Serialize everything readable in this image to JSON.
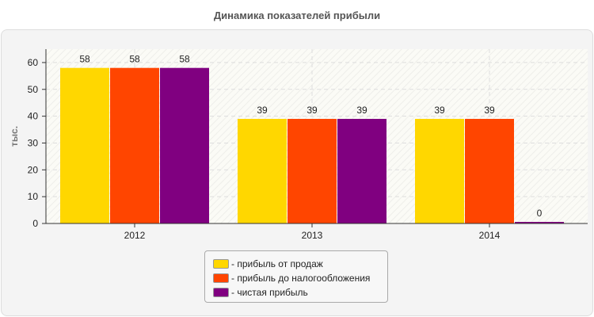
{
  "chart_data": {
    "type": "bar",
    "title": "Динамика показателей прибыли",
    "ylabel": "тыс.",
    "categories": [
      "2012",
      "2013",
      "2014"
    ],
    "ylim": [
      0,
      65
    ],
    "yticks": [
      0,
      10,
      20,
      30,
      40,
      50,
      60
    ],
    "grid": true,
    "legend_position": "bottom",
    "series": [
      {
        "name": "- прибыль от продаж",
        "color": "#FFD700",
        "values": [
          58,
          39,
          39
        ]
      },
      {
        "name": "- прибыль до налогообложения",
        "color": "#FF4500",
        "values": [
          58,
          39,
          39
        ]
      },
      {
        "name": "- чистая прибыль",
        "color": "#800080",
        "values": [
          58,
          39,
          0
        ]
      }
    ]
  }
}
